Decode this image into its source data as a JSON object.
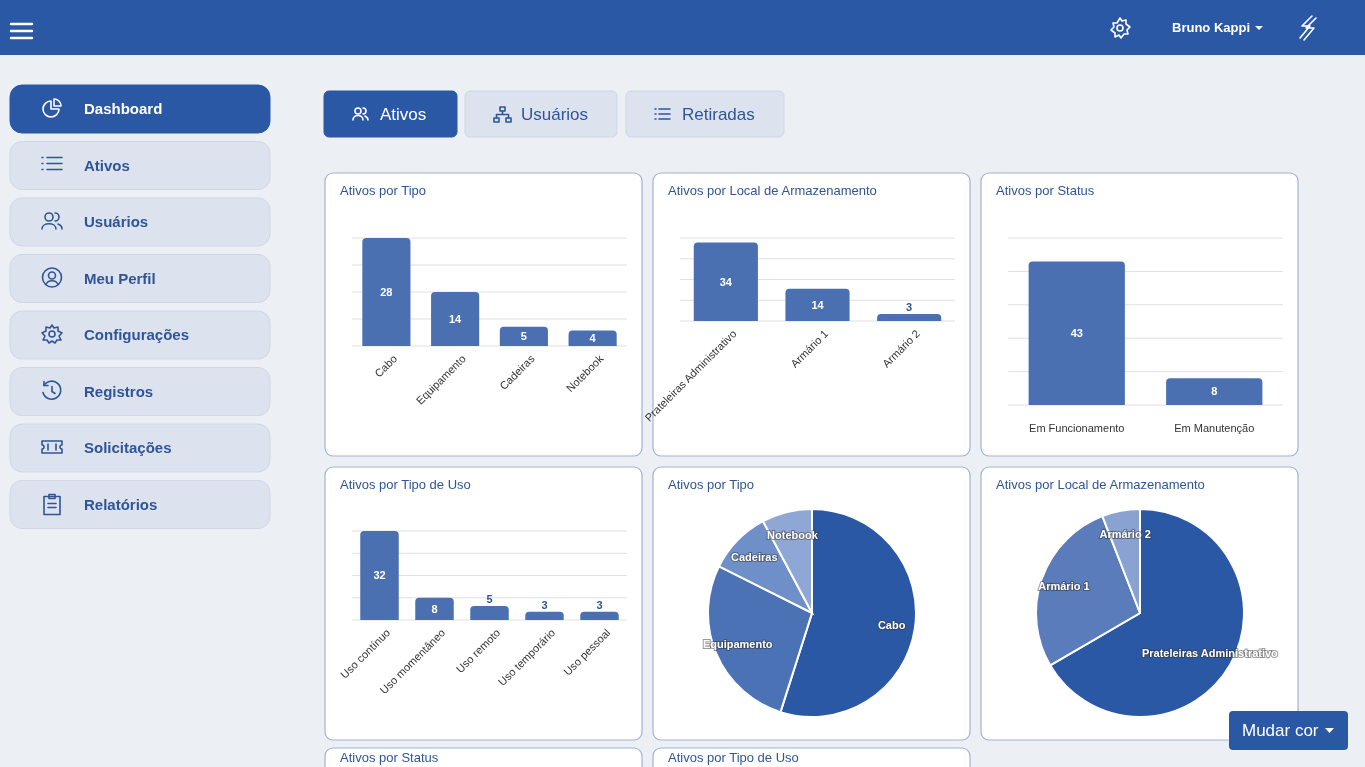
{
  "chart_data": [
    {
      "type": "other",
      "annotations": [
        "Bruno Kappi",
        "Dashboard",
        "Ativos",
        "Usuários",
        "Meu Perfil",
        "Configurações",
        "Registros",
        "Solicitações",
        "Relatórios",
        "Ativos",
        "Usuários",
        "Retiradas",
        "Mudar cor"
      ]
    },
    {
      "type": "bar",
      "title": "Ativos por Tipo",
      "categories": [
        "Cabo",
        "Equipamento",
        "Cadeiras",
        "Notebook"
      ],
      "values": [
        28,
        14,
        5,
        4
      ],
      "color": "#4a70b2",
      "ylim": [
        0,
        28
      ],
      "yticks": [
        {
          "value": 0,
          "label": null
        },
        {
          "value": 7,
          "label": null
        },
        {
          "value": 14,
          "label": null
        },
        {
          "value": 21,
          "label": null
        },
        {
          "value": 28,
          "label": null
        }
      ],
      "grid": "y",
      "tick_labels": "x",
      "data_labels": true
    },
    {
      "type": "bar",
      "title": "Ativos por Local de Armazenamento",
      "categories": [
        "Prateleiras Administrativo",
        "Armário 1",
        "Armário 2"
      ],
      "values": [
        34,
        14,
        3
      ],
      "color": "#4a70b2",
      "ylim": [
        0,
        36
      ],
      "yticks": [
        {
          "value": 0,
          "label": null
        },
        {
          "value": 9,
          "label": null
        },
        {
          "value": 18,
          "label": null
        },
        {
          "value": 27,
          "label": null
        },
        {
          "value": 36,
          "label": null
        }
      ],
      "grid": "y",
      "tick_labels": "x",
      "data_labels": true
    },
    {
      "type": "bar",
      "title": "Ativos por Status",
      "categories": [
        "Em Funcionamento",
        "Em Manutenção"
      ],
      "values": [
        43,
        8
      ],
      "color": "#4a70b2",
      "ylim": [
        0,
        50
      ],
      "yticks": [
        {
          "value": 0,
          "label": null
        },
        {
          "value": 10,
          "label": null
        },
        {
          "value": 20,
          "label": null
        },
        {
          "value": 30,
          "label": null
        },
        {
          "value": 40,
          "label": null
        },
        {
          "value": 50,
          "label": null
        }
      ],
      "grid": "y",
      "tick_labels": "x",
      "data_labels": true
    },
    {
      "type": "bar",
      "title": "Ativos por Tipo de Uso",
      "categories": [
        "Uso contínuo",
        "Uso momentâneo",
        "Uso remoto",
        "Uso temporário",
        "Uso pessoal"
      ],
      "values": [
        32,
        8,
        5,
        3,
        3
      ],
      "color": "#4a70b2",
      "ylim": [
        0,
        32
      ],
      "yticks": [
        {
          "value": 0,
          "label": null
        },
        {
          "value": 8,
          "label": null
        },
        {
          "value": 16,
          "label": null
        },
        {
          "value": 24,
          "label": null
        },
        {
          "value": 32,
          "label": null
        }
      ],
      "grid": "y",
      "tick_labels": "x",
      "data_labels": true
    },
    {
      "type": "pie",
      "title": "Ativos por Tipo",
      "categories": [
        "Cabo",
        "Equipamento",
        "Cadeiras",
        "Notebook"
      ],
      "values": [
        54.9,
        27.5,
        9.8,
        7.8
      ],
      "colors": [
        "#2b58a5",
        "#4a72b5",
        "#6f8fc8",
        "#8fa7d4"
      ]
    },
    {
      "type": "pie",
      "title": "Ativos por Local de Armazenamento",
      "categories": [
        "Prateleiras Administrativo",
        "Armário 1",
        "Armário 2"
      ],
      "values": [
        66.6,
        27.5,
        5.9
      ],
      "colors": [
        "#2b58a5",
        "#5a7cba",
        "#89a2d2"
      ]
    },
    {
      "type": "other",
      "title": "Ativos por Status"
    },
    {
      "type": "other",
      "title": "Ativos por Tipo de Uso"
    }
  ]
}
